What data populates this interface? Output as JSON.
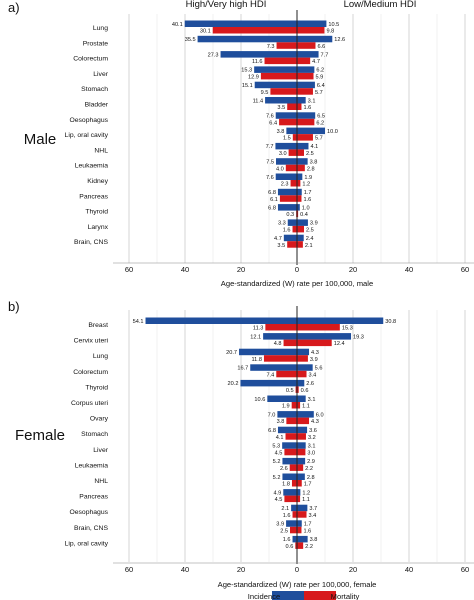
{
  "chart_data": [
    {
      "type": "bar",
      "panel_label": "a)",
      "group_label": "Male",
      "left_header": "High/Very high HDI",
      "right_header": "Low/Medium HDI",
      "xlabel": "Age-standardized (W) rate per 100,000, male",
      "ticks": [
        "60",
        "40",
        "20",
        "0",
        "20",
        "40",
        "60"
      ],
      "xlim": [
        -60,
        60
      ],
      "grid": true,
      "categories": [
        "Lung",
        "Prostate",
        "Colorectum",
        "Liver",
        "Stomach",
        "Bladder",
        "Oesophagus",
        "Lip, oral cavity",
        "NHL",
        "Leukaemia",
        "Kidney",
        "Pancreas",
        "Thyroid",
        "Larynx",
        "Brain, CNS"
      ],
      "series": [
        {
          "name": "Incidence",
          "side": "High/Very high HDI",
          "values": [
            40.1,
            35.5,
            27.3,
            15.3,
            15.1,
            11.4,
            7.6,
            3.8,
            7.7,
            7.5,
            7.6,
            6.8,
            6.8,
            3.3,
            4.7
          ]
        },
        {
          "name": "Mortality",
          "side": "High/Very high HDI",
          "values": [
            30.1,
            7.3,
            11.6,
            12.9,
            9.5,
            3.5,
            6.4,
            1.5,
            3.0,
            4.0,
            2.3,
            6.1,
            0.3,
            1.6,
            3.5
          ]
        },
        {
          "name": "Incidence",
          "side": "Low/Medium HDI",
          "values": [
            10.5,
            12.6,
            7.7,
            6.2,
            6.4,
            3.1,
            6.5,
            10.0,
            4.1,
            3.8,
            1.9,
            1.7,
            1.0,
            3.9,
            2.4
          ]
        },
        {
          "name": "Mortality",
          "side": "Low/Medium HDI",
          "values": [
            9.8,
            6.6,
            4.7,
            5.9,
            5.7,
            1.6,
            6.2,
            5.7,
            2.5,
            2.8,
            1.2,
            1.6,
            0.4,
            2.5,
            2.1
          ]
        }
      ]
    },
    {
      "type": "bar",
      "panel_label": "b)",
      "group_label": "Female",
      "left_header": "",
      "right_header": "",
      "xlabel": "Age-standardized (W) rate per 100,000, female",
      "ticks": [
        "60",
        "40",
        "20",
        "0",
        "20",
        "40",
        "60"
      ],
      "xlim": [
        -60,
        60
      ],
      "grid": true,
      "categories": [
        "Breast",
        "Cervix uteri",
        "Lung",
        "Colorectum",
        "Thyroid",
        "Corpus uteri",
        "Ovary",
        "Stomach",
        "Liver",
        "Leukaemia",
        "NHL",
        "Pancreas",
        "Oesophagus",
        "Brain, CNS",
        "Lip, oral cavity"
      ],
      "series": [
        {
          "name": "Incidence",
          "side": "High/Very high HDI",
          "values": [
            54.1,
            12.1,
            20.7,
            16.7,
            20.2,
            10.6,
            7.0,
            6.8,
            5.3,
            5.2,
            5.2,
            4.9,
            2.1,
            3.9,
            1.6
          ]
        },
        {
          "name": "Mortality",
          "side": "High/Very high HDI",
          "values": [
            11.3,
            4.8,
            11.8,
            7.4,
            0.5,
            1.9,
            3.8,
            4.1,
            4.5,
            2.6,
            1.8,
            4.5,
            1.6,
            2.5,
            0.6
          ]
        },
        {
          "name": "Incidence",
          "side": "Low/Medium HDI",
          "values": [
            30.8,
            19.3,
            4.3,
            5.6,
            2.6,
            3.1,
            6.0,
            3.6,
            3.1,
            2.9,
            2.8,
            1.2,
            3.7,
            1.7,
            3.8
          ]
        },
        {
          "name": "Mortality",
          "side": "Low/Medium HDI",
          "values": [
            15.3,
            12.4,
            3.9,
            3.4,
            0.6,
            1.1,
            4.3,
            3.2,
            3.0,
            2.2,
            1.7,
            1.1,
            3.4,
            1.6,
            2.2
          ]
        }
      ]
    }
  ],
  "legend": {
    "items": [
      {
        "label": "Incidence",
        "color": "#1f4e9c"
      },
      {
        "label": "Mortality",
        "color": "#d7191c"
      }
    ],
    "placement": "bottom-center"
  },
  "colors": {
    "incidence": "#1f4e9c",
    "mortality": "#d7191c",
    "grid": "#cccccc",
    "axis": "#222222"
  }
}
